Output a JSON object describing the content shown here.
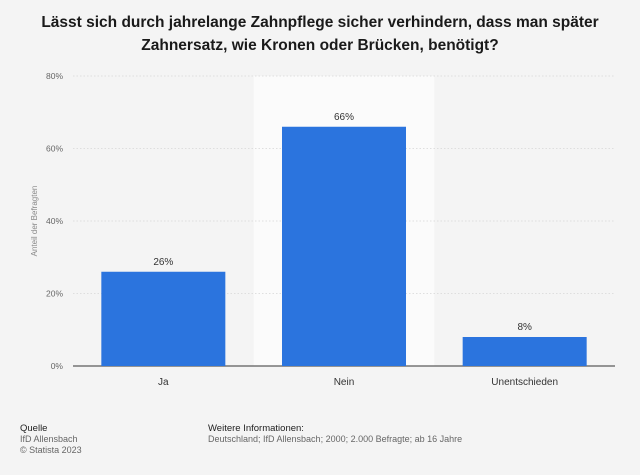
{
  "chart_data": {
    "type": "bar",
    "title": "Lässt sich durch jahrelange Zahnpflege sicher verhindern, dass man später Zahnersatz, wie Kronen oder Brücken, benötigt?",
    "categories": [
      "Ja",
      "Nein",
      "Unentschieden"
    ],
    "values": [
      26,
      66,
      8
    ],
    "value_labels": [
      "26%",
      "66%",
      "8%"
    ],
    "ylabel": "Anteil der Befragten",
    "ylim": [
      0,
      80
    ],
    "yticks": [
      0,
      20,
      40,
      60,
      80
    ],
    "ytick_labels": [
      "0%",
      "20%",
      "40%",
      "60%",
      "80%"
    ],
    "grid": true,
    "highlighted_category": "Nein",
    "bar_color": "#2b74de"
  },
  "footer": {
    "source_heading": "Quelle",
    "source_lines": [
      "IfD Allensbach",
      "© Statista 2023"
    ],
    "info_heading": "Weitere Informationen:",
    "info_text": "Deutschland; IfD Allensbach; 2000; 2.000 Befragte; ab 16 Jahre"
  }
}
